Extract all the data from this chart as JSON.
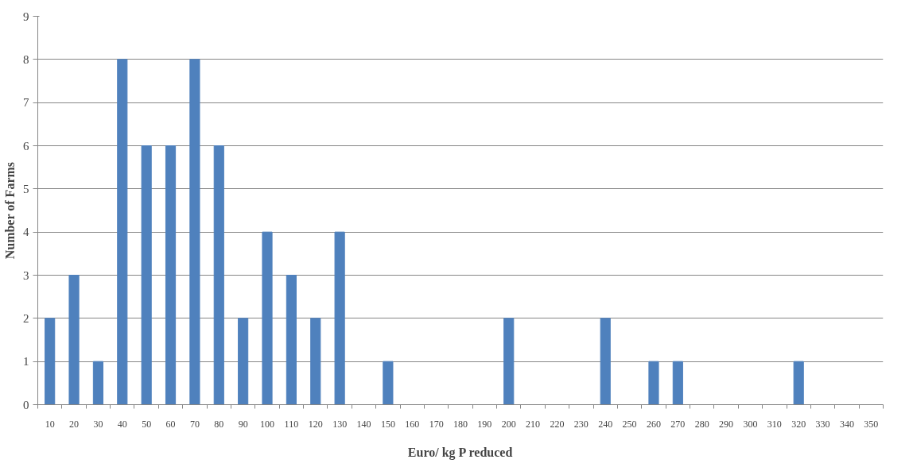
{
  "chart_data": {
    "type": "bar",
    "xlabel": "Euro/ kg P reduced",
    "ylabel": "Number of Farms",
    "categories": [
      "10",
      "20",
      "30",
      "40",
      "50",
      "60",
      "70",
      "80",
      "90",
      "100",
      "110",
      "120",
      "130",
      "140",
      "150",
      "160",
      "170",
      "180",
      "190",
      "200",
      "210",
      "220",
      "230",
      "240",
      "250",
      "260",
      "270",
      "280",
      "290",
      "300",
      "310",
      "320",
      "330",
      "340",
      "350"
    ],
    "values": [
      2,
      3,
      1,
      8,
      6,
      6,
      8,
      6,
      2,
      4,
      3,
      2,
      4,
      0,
      1,
      0,
      0,
      0,
      0,
      2,
      0,
      0,
      0,
      2,
      0,
      1,
      1,
      0,
      0,
      0,
      0,
      1,
      0,
      0,
      0
    ],
    "color": "#4f81bd",
    "ylim": [
      0,
      9
    ],
    "yticks": [
      0,
      1,
      2,
      3,
      4,
      5,
      6,
      7,
      8,
      9
    ],
    "grid": "y"
  }
}
